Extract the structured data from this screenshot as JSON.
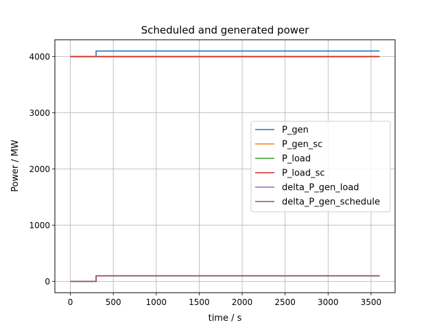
{
  "chart_data": {
    "type": "line",
    "title": "Scheduled and generated power",
    "xlabel": "time / s",
    "ylabel": "Power / MW",
    "xlim": [
      -180,
      3780
    ],
    "ylim": [
      -200,
      4300
    ],
    "xticks": [
      0,
      500,
      1000,
      1500,
      2000,
      2500,
      3000,
      3500
    ],
    "yticks": [
      0,
      1000,
      2000,
      3000,
      4000
    ],
    "grid": true,
    "legend_position": "center-right",
    "series": [
      {
        "name": "P_gen",
        "color": "#1f77b4",
        "x": [
          0,
          300,
          300,
          3600
        ],
        "y": [
          4000,
          4000,
          4100,
          4100
        ]
      },
      {
        "name": "P_gen_sc",
        "color": "#ff7f0e",
        "x": [
          0,
          3600
        ],
        "y": [
          4000,
          4000
        ]
      },
      {
        "name": "P_load",
        "color": "#2ca02c",
        "x": [
          0,
          3600
        ],
        "y": [
          4000,
          4000
        ]
      },
      {
        "name": "P_load_sc",
        "color": "#d62728",
        "x": [
          0,
          3600
        ],
        "y": [
          4000,
          4000
        ]
      },
      {
        "name": "delta_P_gen_load",
        "color": "#9467bd",
        "x": [
          0,
          300,
          300,
          3600
        ],
        "y": [
          0,
          0,
          100,
          100
        ]
      },
      {
        "name": "delta_P_gen_schedule",
        "color": "#8c564b",
        "x": [
          0,
          300,
          300,
          3600
        ],
        "y": [
          0,
          0,
          100,
          100
        ]
      }
    ]
  }
}
